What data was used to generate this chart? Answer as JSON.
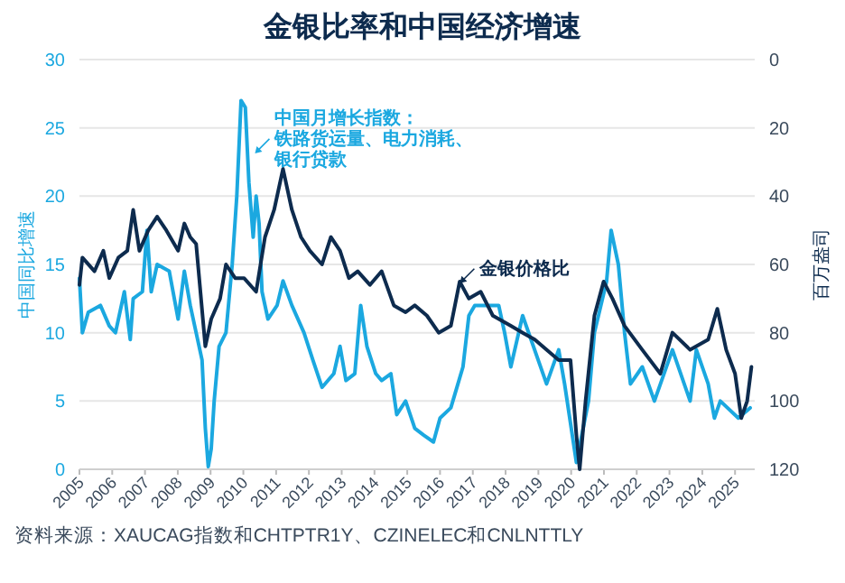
{
  "chart_data": {
    "type": "line",
    "title": "金银比率和中国经济增速",
    "ylabel": "中国同比增速",
    "y2label": "百万盎司",
    "xlim": [
      2005,
      2025.6
    ],
    "xticks": [
      2005,
      2006,
      2007,
      2008,
      2009,
      2010,
      2011,
      2012,
      2013,
      2014,
      2015,
      2016,
      2017,
      2018,
      2019,
      2020,
      2021,
      2022,
      2023,
      2024,
      2025
    ],
    "ylim": [
      0,
      30
    ],
    "yticks": [
      0,
      5,
      10,
      15,
      20,
      25,
      30
    ],
    "y2lim": [
      120,
      0
    ],
    "y2ticks": [
      0,
      20,
      40,
      60,
      80,
      100,
      120
    ],
    "grid": "y",
    "series": [
      {
        "color": "#1ba8e0",
        "x": [
          2005.0,
          2005.09,
          2005.27,
          2005.64,
          2005.91,
          2006.1,
          2006.37,
          2006.55,
          2006.64,
          2006.92,
          2007.06,
          2007.19,
          2007.37,
          2007.74,
          2008.01,
          2008.2,
          2008.38,
          2008.56,
          2008.74,
          2008.84,
          2008.93,
          2009.02,
          2009.11,
          2009.26,
          2009.47,
          2009.66,
          2009.8,
          2009.93,
          2010.06,
          2010.17,
          2010.3,
          2010.39,
          2010.48,
          2010.57,
          2010.75,
          2011.03,
          2011.21,
          2011.48,
          2011.85,
          2012.12,
          2012.4,
          2012.76,
          2012.95,
          2013.13,
          2013.4,
          2013.58,
          2013.77,
          2014.04,
          2014.22,
          2014.5,
          2014.68,
          2014.95,
          2015.23,
          2015.5,
          2015.8,
          2016.0,
          2016.33,
          2016.7,
          2016.88,
          2017.06,
          2017.79,
          2017.97,
          2018.16,
          2018.52,
          2019.25,
          2019.62,
          2019.8,
          2020.16,
          2020.53,
          2020.71,
          2021.08,
          2021.22,
          2021.44,
          2021.63,
          2021.81,
          2022.17,
          2022.54,
          2023.09,
          2023.63,
          2023.82,
          2024.18,
          2024.37,
          2024.55,
          2025.1,
          2025.46
        ],
        "values": [
          14,
          10,
          11.5,
          12,
          10.5,
          10,
          13,
          9.5,
          12.5,
          13,
          17.5,
          13,
          15,
          14.5,
          11,
          14.5,
          12,
          10,
          8,
          3,
          0.2,
          1.5,
          5,
          9,
          10,
          15,
          20,
          27,
          26.5,
          21,
          17,
          20,
          18,
          13,
          11,
          12,
          13.8,
          12,
          10,
          8,
          6,
          7,
          9,
          6.5,
          7,
          12,
          9,
          7,
          6.5,
          7,
          4,
          5,
          3,
          2.5,
          2,
          3.75,
          4.5,
          7.5,
          11.25,
          12,
          12,
          10,
          7.5,
          11.25,
          6.25,
          8.75,
          6.25,
          0.5,
          5,
          10,
          13.75,
          17.5,
          15,
          10,
          6.25,
          7.5,
          5,
          8.75,
          5,
          8.75,
          6.25,
          3.75,
          5,
          3.75,
          4.5
        ]
      },
      {
        "color": "#0d2b4e",
        "axis": "y2",
        "x": [
          2005.0,
          2005.09,
          2005.46,
          2005.73,
          2005.91,
          2006.19,
          2006.46,
          2006.64,
          2006.83,
          2007.1,
          2007.37,
          2007.65,
          2008.01,
          2008.2,
          2008.38,
          2008.56,
          2008.84,
          2009.02,
          2009.29,
          2009.47,
          2009.75,
          2010.02,
          2010.39,
          2010.66,
          2010.94,
          2011.21,
          2011.48,
          2011.76,
          2012.03,
          2012.4,
          2012.67,
          2012.95,
          2013.22,
          2013.49,
          2013.86,
          2014.22,
          2014.59,
          2014.95,
          2015.23,
          2015.6,
          2015.96,
          2016.33,
          2016.6,
          2016.88,
          2017.24,
          2017.61,
          2018.16,
          2018.52,
          2018.89,
          2019.25,
          2019.62,
          2019.98,
          2020.16,
          2020.26,
          2020.44,
          2020.71,
          2020.99,
          2021.26,
          2021.63,
          2022.17,
          2022.72,
          2023.09,
          2023.63,
          2024.18,
          2024.46,
          2024.73,
          2025.0,
          2025.19,
          2025.37,
          2025.5
        ],
        "values": [
          66,
          58,
          62,
          56,
          64,
          58,
          56,
          44,
          56,
          50,
          46,
          50,
          56,
          48,
          52,
          54,
          84,
          76,
          70,
          60,
          64,
          64,
          68,
          52,
          44,
          32,
          44,
          52,
          56,
          60,
          52,
          56,
          64,
          62,
          66,
          62,
          72,
          74,
          72,
          75,
          80,
          78,
          65,
          70,
          68,
          75,
          78,
          80,
          82,
          85,
          88,
          88,
          110,
          120,
          100,
          75,
          65,
          70,
          78,
          85,
          92,
          80,
          85,
          82,
          73,
          85,
          92,
          105,
          100,
          90
        ]
      }
    ],
    "annotations": [
      {
        "text": "中国月增长指数：铁路货运量、电力消耗、银行贷款",
        "x": 2010.3,
        "y": 23
      },
      {
        "text": "金银价格比",
        "x": 2016.55,
        "y": 13.5
      },
      "资料来源：XAUCAG指数和CHTPTR1Y、CZINELEC和CNLNTTLY"
    ]
  }
}
